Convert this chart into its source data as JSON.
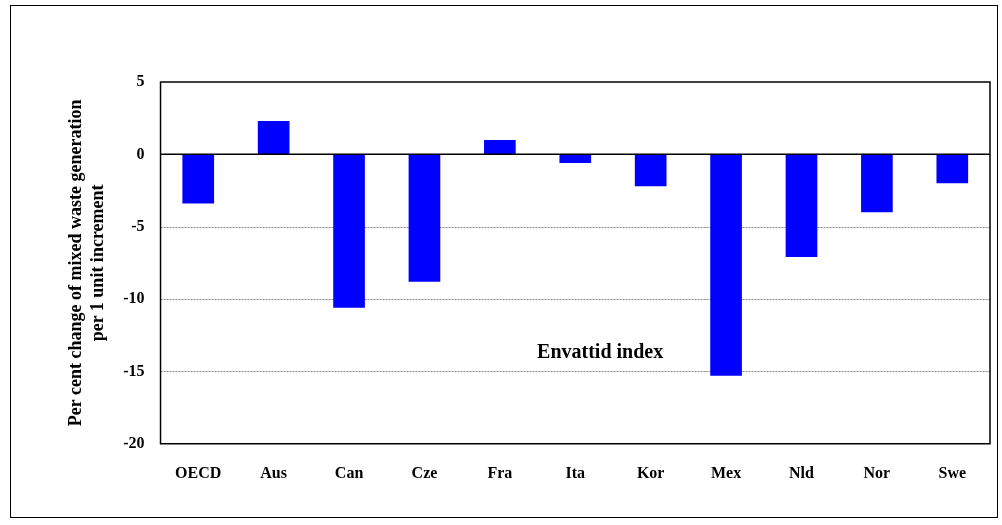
{
  "chart_data": {
    "type": "bar",
    "ylabel": "Per cent change of mixed waste generation\nper 1 unit increment",
    "categories": [
      "OECD",
      "Aus",
      "Can",
      "Cze",
      "Fra",
      "Ita",
      "Kor",
      "Mex",
      "Nld",
      "Nor",
      "Swe"
    ],
    "values": [
      -3.4,
      2.3,
      -10.6,
      -8.8,
      1.0,
      -0.6,
      -2.2,
      -15.3,
      -7.1,
      -4.0,
      -2.0
    ],
    "color": "#0000ff",
    "ylim": [
      -20,
      5
    ],
    "yticks": [
      -20,
      -15,
      -10,
      -5,
      0,
      5
    ],
    "grid": "y",
    "annotations": [
      "Envattid index"
    ]
  }
}
